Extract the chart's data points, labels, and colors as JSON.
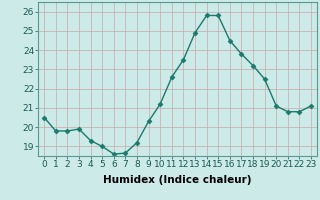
{
  "x": [
    0,
    1,
    2,
    3,
    4,
    5,
    6,
    7,
    8,
    9,
    10,
    11,
    12,
    13,
    14,
    15,
    16,
    17,
    18,
    19,
    20,
    21,
    22,
    23
  ],
  "y": [
    20.5,
    19.8,
    19.8,
    19.9,
    19.3,
    19.0,
    18.6,
    18.65,
    19.2,
    20.3,
    21.2,
    22.6,
    23.5,
    24.9,
    25.8,
    25.8,
    24.5,
    23.8,
    23.2,
    22.5,
    21.1,
    20.8,
    20.8,
    21.1
  ],
  "line_color": "#1a7a6e",
  "marker": "D",
  "markersize": 2.5,
  "linewidth": 1.0,
  "bg_color": "#cceae7",
  "grid_color_x": "#c8a8a8",
  "grid_color_y": "#c8a8a8",
  "xlabel": "Humidex (Indice chaleur)",
  "xlim": [
    -0.5,
    23.5
  ],
  "ylim": [
    18.5,
    26.5
  ],
  "yticks": [
    19,
    20,
    21,
    22,
    23,
    24,
    25,
    26
  ],
  "xticks": [
    0,
    1,
    2,
    3,
    4,
    5,
    6,
    7,
    8,
    9,
    10,
    11,
    12,
    13,
    14,
    15,
    16,
    17,
    18,
    19,
    20,
    21,
    22,
    23
  ],
  "xlabel_fontsize": 7.5,
  "tick_fontsize": 6.5,
  "spine_color": "#5a9a90"
}
